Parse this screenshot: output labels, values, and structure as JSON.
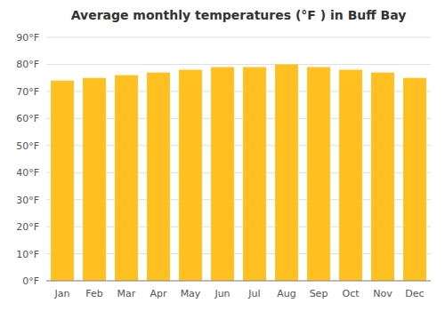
{
  "chart_data": {
    "type": "bar",
    "title": "Average monthly temperatures (°F ) in Buff Bay",
    "categories": [
      "Jan",
      "Feb",
      "Mar",
      "Apr",
      "May",
      "Jun",
      "Jul",
      "Aug",
      "Sep",
      "Oct",
      "Nov",
      "Dec"
    ],
    "values": [
      74,
      75,
      76,
      77,
      78,
      79,
      79,
      80,
      79,
      78,
      77,
      75
    ],
    "color": "#FFC020",
    "ylim": [
      0,
      90
    ],
    "yticks": [
      {
        "value": 0,
        "label": "0°F"
      },
      {
        "value": 10,
        "label": "10°F"
      },
      {
        "value": 20,
        "label": "20°F"
      },
      {
        "value": 30,
        "label": "30°F"
      },
      {
        "value": 40,
        "label": "40°F"
      },
      {
        "value": 50,
        "label": "50°F"
      },
      {
        "value": 60,
        "label": "60°F"
      },
      {
        "value": 70,
        "label": "70°F"
      },
      {
        "value": 80,
        "label": "80°F"
      },
      {
        "value": 90,
        "label": "90°F"
      }
    ],
    "grid": true
  }
}
